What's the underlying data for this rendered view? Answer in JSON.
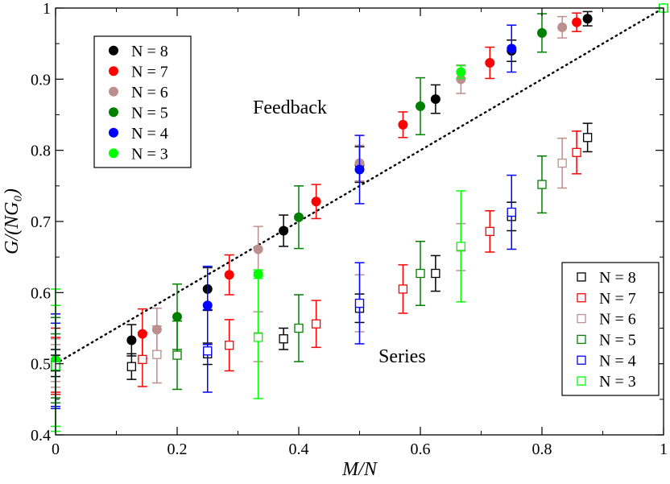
{
  "chart_data": {
    "type": "scatter",
    "xlabel": "M/N",
    "ylabel": "G/(NG₀)",
    "xlim": [
      0,
      1
    ],
    "ylim": [
      0.4,
      1.0
    ],
    "x_ticks": [
      "0",
      "0.2",
      "0.4",
      "0.6",
      "0.8",
      "1"
    ],
    "y_ticks": [
      "0.4",
      "0.5",
      "0.6",
      "0.7",
      "0.8",
      "0.9",
      "1"
    ],
    "annotations": {
      "feedback": "Feedback",
      "series": "Series"
    },
    "reference_line": {
      "style": "dotted",
      "from": [
        0,
        0.5
      ],
      "to": [
        1,
        1.0
      ]
    },
    "colors": {
      "N8": "#000000",
      "N7": "#ff0000",
      "N6": "#bc8f8f",
      "N5": "#008000",
      "N4": "#0000ff",
      "N3": "#00ff00"
    },
    "legend_feedback": {
      "placement": "top-left",
      "entries": [
        {
          "label": "N = 8",
          "color": "#000000"
        },
        {
          "label": "N = 7",
          "color": "#ff0000"
        },
        {
          "label": "N = 6",
          "color": "#bc8f8f"
        },
        {
          "label": "N = 5",
          "color": "#008000"
        },
        {
          "label": "N = 4",
          "color": "#0000ff"
        },
        {
          "label": "N = 3",
          "color": "#00ff00"
        }
      ]
    },
    "legend_series": {
      "placement": "bottom-right",
      "entries": [
        {
          "label": "N = 8",
          "color": "#000000"
        },
        {
          "label": "N = 7",
          "color": "#ff0000"
        },
        {
          "label": "N = 6",
          "color": "#bc8f8f"
        },
        {
          "label": "N = 5",
          "color": "#008000"
        },
        {
          "label": "N = 4",
          "color": "#0000ff"
        },
        {
          "label": "N = 3",
          "color": "#00ff00"
        }
      ]
    },
    "series": [
      {
        "name": "Feedback N = 8",
        "kind": "feedback",
        "color": "#000000",
        "points": [
          [
            0,
            0.505,
            0.015
          ],
          [
            0.125,
            0.533,
            0.022
          ],
          [
            0.25,
            0.605,
            0.03
          ],
          [
            0.375,
            0.687,
            0.022
          ],
          [
            0.5,
            0.78,
            0.025
          ],
          [
            0.625,
            0.872,
            0.02
          ],
          [
            0.75,
            0.94,
            0.015
          ],
          [
            0.875,
            0.985,
            0.01
          ]
        ]
      },
      {
        "name": "Feedback N = 7",
        "kind": "feedback",
        "color": "#ff0000",
        "points": [
          [
            0,
            0.505,
            0.045
          ],
          [
            0.1429,
            0.542,
            0.035
          ],
          [
            0.2857,
            0.625,
            0.028
          ],
          [
            0.4286,
            0.728,
            0.024
          ],
          [
            0.5714,
            0.836,
            0.018
          ],
          [
            0.7143,
            0.923,
            0.022
          ],
          [
            0.8571,
            0.98,
            0.013
          ],
          [
            1.0,
            1.0,
            0.005
          ]
        ]
      },
      {
        "name": "Feedback N = 6",
        "kind": "feedback",
        "color": "#bc8f8f",
        "points": [
          [
            0,
            0.505,
            0.03
          ],
          [
            0.1667,
            0.548,
            0.03
          ],
          [
            0.3333,
            0.661,
            0.032
          ],
          [
            0.5,
            0.782,
            0.025
          ],
          [
            0.6667,
            0.9,
            0.02
          ],
          [
            0.8333,
            0.973,
            0.015
          ]
        ]
      },
      {
        "name": "Feedback N = 5",
        "kind": "feedback",
        "color": "#008000",
        "points": [
          [
            0,
            0.505,
            0.06
          ],
          [
            0.2,
            0.566,
            0.046
          ],
          [
            0.4,
            0.706,
            0.044
          ],
          [
            0.6,
            0.862,
            0.04
          ],
          [
            0.8,
            0.965,
            0.027
          ],
          [
            1.0,
            1.0,
            0.005
          ]
        ]
      },
      {
        "name": "Feedback N = 4",
        "kind": "feedback",
        "color": "#0000ff",
        "points": [
          [
            0,
            0.505,
            0.065
          ],
          [
            0.25,
            0.582,
            0.055
          ],
          [
            0.5,
            0.773,
            0.048
          ],
          [
            0.75,
            0.943,
            0.033
          ],
          [
            1.0,
            1.0,
            0.005
          ]
        ]
      },
      {
        "name": "Feedback N = 3",
        "kind": "feedback",
        "color": "#00ff00",
        "points": [
          [
            0,
            0.505,
            0.1
          ],
          [
            0.3333,
            0.626,
            0.006
          ],
          [
            0.6667,
            0.91,
            0.009
          ],
          [
            1.0,
            1.0,
            0.003
          ]
        ]
      },
      {
        "name": "Series N = 8",
        "kind": "series",
        "color": "#000000",
        "points": [
          [
            0,
            0.497,
            0.015
          ],
          [
            0.125,
            0.496,
            0.018
          ],
          [
            0.25,
            0.514,
            0.015
          ],
          [
            0.375,
            0.535,
            0.015
          ],
          [
            0.5,
            0.578,
            0.02
          ],
          [
            0.625,
            0.627,
            0.025
          ],
          [
            0.75,
            0.707,
            0.02
          ],
          [
            0.875,
            0.818,
            0.02
          ]
        ]
      },
      {
        "name": "Series N = 7",
        "kind": "series",
        "color": "#ff0000",
        "points": [
          [
            0,
            0.497,
            0.04
          ],
          [
            0.1429,
            0.506,
            0.038
          ],
          [
            0.2857,
            0.526,
            0.036
          ],
          [
            0.4286,
            0.556,
            0.033
          ],
          [
            0.5714,
            0.605,
            0.034
          ],
          [
            0.7143,
            0.686,
            0.029
          ],
          [
            0.8571,
            0.797,
            0.03
          ]
        ]
      },
      {
        "name": "Series N = 6",
        "kind": "series",
        "color": "#bc8f8f",
        "points": [
          [
            0,
            0.497,
            0.03
          ],
          [
            0.1667,
            0.513,
            0.04
          ],
          [
            0.3333,
            0.538,
            0.035
          ],
          [
            0.5,
            0.585,
            0.04
          ],
          [
            0.6667,
            0.664,
            0.033
          ],
          [
            0.8333,
            0.782,
            0.035
          ]
        ]
      },
      {
        "name": "Series N = 5",
        "kind": "series",
        "color": "#008000",
        "points": [
          [
            0,
            0.497,
            0.045
          ],
          [
            0.2,
            0.512,
            0.048
          ],
          [
            0.4,
            0.55,
            0.047
          ],
          [
            0.6,
            0.627,
            0.045
          ],
          [
            0.8,
            0.752,
            0.04
          ]
        ]
      },
      {
        "name": "Series N = 4",
        "kind": "series",
        "color": "#0000ff",
        "points": [
          [
            0,
            0.497,
            0.06
          ],
          [
            0.25,
            0.518,
            0.058
          ],
          [
            0.5,
            0.585,
            0.057
          ],
          [
            0.75,
            0.713,
            0.052
          ]
        ]
      },
      {
        "name": "Series N = 3",
        "kind": "series",
        "color": "#00ff00",
        "points": [
          [
            0,
            0.497,
            0.085
          ],
          [
            0.3333,
            0.537,
            0.086
          ],
          [
            0.6667,
            0.665,
            0.078
          ],
          [
            1.0,
            1.0,
            0.004
          ]
        ]
      }
    ]
  }
}
